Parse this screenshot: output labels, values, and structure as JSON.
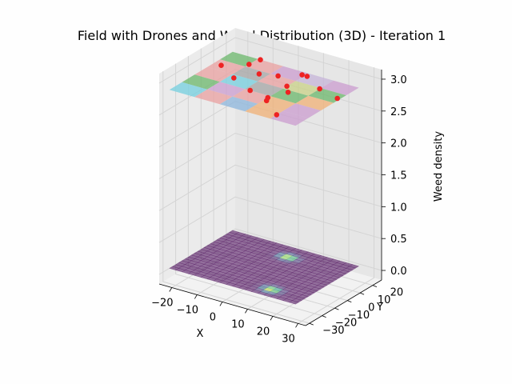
{
  "chart_data": {
    "type": "scatter",
    "projection": "3d",
    "title": "Field with Drones and Weed Distribution (3D) - Iteration 1",
    "xlabel": "X",
    "ylabel": "Y",
    "zlabel": "Weed density",
    "x_ticks": [
      "−20",
      "−10",
      "0",
      "10",
      "20",
      "30"
    ],
    "x_tick_values": [
      -20,
      -10,
      0,
      10,
      20,
      30
    ],
    "y_ticks": [
      "−30",
      "−20",
      "−10",
      "0",
      "10",
      "20"
    ],
    "y_tick_values": [
      -30,
      -20,
      -10,
      0,
      10,
      20
    ],
    "z_ticks": [
      "0.0",
      "0.5",
      "1.0",
      "1.5",
      "2.0",
      "2.5",
      "3.0"
    ],
    "z_tick_values": [
      0,
      0.5,
      1,
      1.5,
      2,
      2.5,
      3
    ],
    "xlim": [
      -25,
      33
    ],
    "ylim": [
      -33,
      27
    ],
    "zlim": [
      -0.15,
      3.15
    ],
    "grid": true,
    "weed_surface": {
      "z": 0,
      "extent": [
        -25,
        25,
        -25,
        25
      ],
      "base_color": "#8e5ea2",
      "hotspots": [
        {
          "x": 2,
          "y": 15,
          "peak": 3.0
        },
        {
          "x": 12,
          "y": -18,
          "peak": 3.0
        }
      ]
    },
    "drone_plane": {
      "z": 2.8,
      "extent": [
        -25,
        25,
        -25,
        25
      ],
      "rows": 5,
      "cols": 5,
      "cell_colors": [
        [
          "#6fb86f",
          "#e9a3a3",
          "#cc9fd0",
          "#c7b6d8",
          "#cc9fd0"
        ],
        [
          "#e9a3a3",
          "#a8a8a8",
          "#e9a3a3",
          "#cbd28a",
          "#6fb86f"
        ],
        [
          "#e9a3a3",
          "#78d0df",
          "#a8a8a8",
          "#6fb86f",
          "#f0b27a"
        ],
        [
          "#6fb86f",
          "#cc9fd0",
          "#e9a3a3",
          "#f0b27a",
          "#cc9fd0"
        ],
        [
          "#78d0df",
          "#e9a3a3",
          "#8fb7dd",
          "#f0b27a",
          "#cc9fd0"
        ]
      ]
    },
    "series": [
      {
        "marker_color": "#ee2222",
        "points": [
          {
            "x": -22,
            "y": 10,
            "z": 2.8
          },
          {
            "x": -15,
            "y": 18,
            "z": 2.8
          },
          {
            "x": -13,
            "y": 2,
            "z": 2.8
          },
          {
            "x": -3,
            "y": -5,
            "z": 2.8
          },
          {
            "x": -8,
            "y": 12,
            "z": 2.8
          },
          {
            "x": -14,
            "y": 25,
            "z": 2.8
          },
          {
            "x": -2,
            "y": 15,
            "z": 2.8
          },
          {
            "x": 6,
            "y": -10,
            "z": 2.8
          },
          {
            "x": 5,
            "y": -7,
            "z": 2.8
          },
          {
            "x": 5,
            "y": 8,
            "z": 2.8
          },
          {
            "x": 8,
            "y": 3,
            "z": 2.8
          },
          {
            "x": 4,
            "y": 22,
            "z": 2.8
          },
          {
            "x": 6,
            "y": 22,
            "z": 2.8
          },
          {
            "x": 15,
            "y": 14,
            "z": 2.8
          },
          {
            "x": 24,
            "y": 10,
            "z": 2.8
          },
          {
            "x": 15,
            "y": -20,
            "z": 2.8
          }
        ]
      }
    ]
  }
}
